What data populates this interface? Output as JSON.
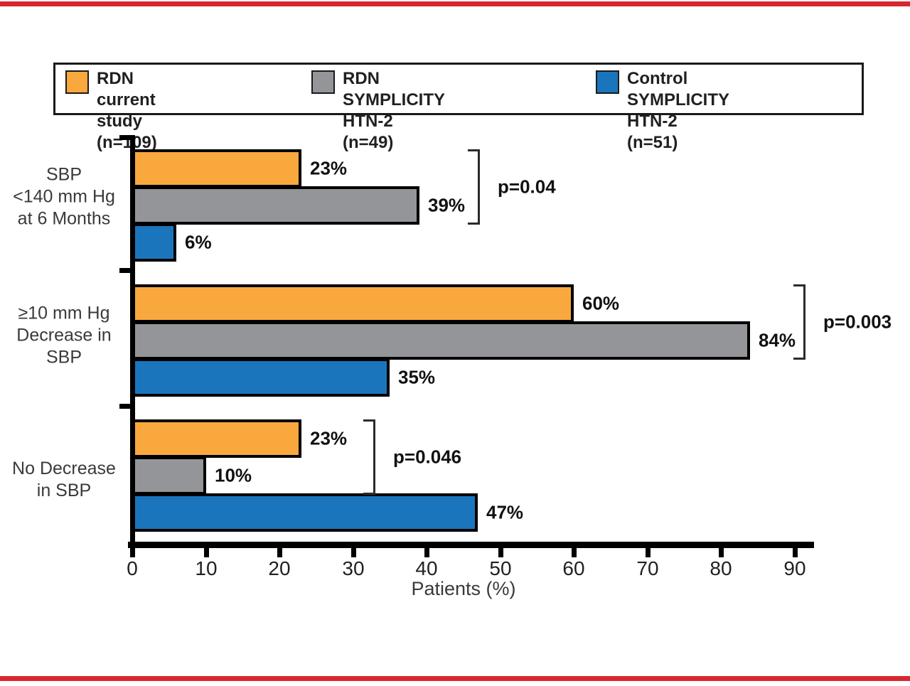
{
  "page": {
    "top_rule_color": "#d7282f",
    "bottom_rule_color": "#d7282f"
  },
  "legend": {
    "items": [
      {
        "label": "RDN current study",
        "n": "(n=109)",
        "color": "#f9a83e"
      },
      {
        "label": "RDN SYMPLICITY HTN-2",
        "n": "(n=49)",
        "color": "#939598"
      },
      {
        "label": "Control SYMPLICITY HTN-2",
        "n": "(n=51)",
        "color": "#1b75bc"
      }
    ]
  },
  "chart_data": {
    "type": "bar",
    "orientation": "horizontal",
    "title": "",
    "categories": [
      "SBP\n<140 mm Hg\nat 6 Months",
      "≥10 mm Hg\nDecrease in\nSBP",
      "No Decrease\nin SBP"
    ],
    "series": [
      {
        "name": "RDN current study (n=109)",
        "color": "#f9a83e",
        "values": [
          23,
          60,
          23
        ]
      },
      {
        "name": "RDN SYMPLICITY HTN-2 (n=49)",
        "color": "#939598",
        "values": [
          39,
          84,
          10
        ]
      },
      {
        "name": "Control SYMPLICITY HTN-2 (n=51)",
        "color": "#1b75bc",
        "values": [
          6,
          35,
          47
        ]
      }
    ],
    "value_labels": [
      [
        "23%",
        "60%",
        "23%"
      ],
      [
        "39%",
        "84%",
        "10%"
      ],
      [
        "6%",
        "35%",
        "47%"
      ]
    ],
    "annotations": [
      {
        "label": "p=0.04",
        "group": 0,
        "bars": [
          0,
          1
        ],
        "x_pct": 47
      },
      {
        "label": "p=0.003",
        "group": 1,
        "bars": [
          0,
          1
        ],
        "x_pct": 91.2
      },
      {
        "label": "p=0.046",
        "group": 2,
        "bars": [
          0,
          1
        ],
        "x_pct": 32.8
      }
    ],
    "xlabel": "Patients (%)",
    "xlim": [
      0,
      90
    ],
    "xticks": [
      0,
      10,
      20,
      30,
      40,
      50,
      60,
      70,
      80,
      90
    ],
    "grid": false,
    "legend_position": "top",
    "bar_outline_color": "#000000"
  }
}
